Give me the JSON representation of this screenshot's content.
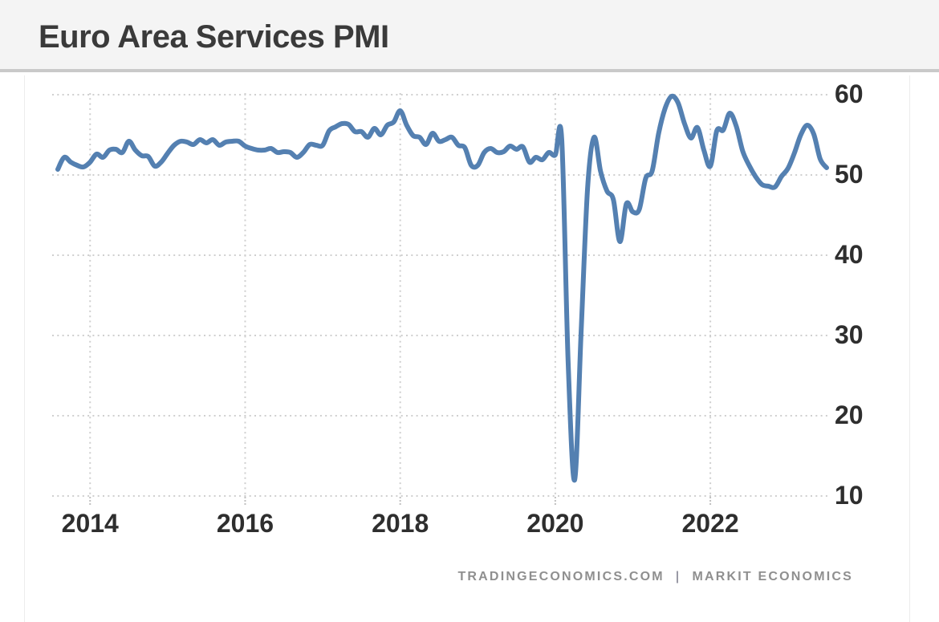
{
  "header": {
    "title": "Euro Area Services PMI"
  },
  "footer": {
    "source_left": "TRADINGECONOMICS.COM",
    "separator": "|",
    "source_right": "MARKIT ECONOMICS"
  },
  "chart_data": {
    "type": "line",
    "title": "Euro Area Services PMI",
    "frequency": "monthly",
    "x_start": "2013-08",
    "x_end": "2023-07",
    "ylim": [
      10,
      60
    ],
    "y_tick_labels": [
      "60",
      "50",
      "40",
      "30",
      "20",
      "10"
    ],
    "y_tick_values": [
      60,
      50,
      40,
      30,
      20,
      10
    ],
    "x_tick_labels": [
      "2014",
      "2016",
      "2018",
      "2020",
      "2022"
    ],
    "grid": "dotted",
    "legend": "none",
    "line_color": "#5480b1",
    "values": [
      50.7,
      52.2,
      51.6,
      51.2,
      51.0,
      51.6,
      52.6,
      52.2,
      53.1,
      53.2,
      52.8,
      54.2,
      53.1,
      52.4,
      52.3,
      51.1,
      51.6,
      52.7,
      53.7,
      54.2,
      54.1,
      53.8,
      54.4,
      54.0,
      54.4,
      53.7,
      54.1,
      54.2,
      54.2,
      53.6,
      53.3,
      53.1,
      53.1,
      53.3,
      52.8,
      52.9,
      52.8,
      52.2,
      52.8,
      53.8,
      53.7,
      53.7,
      55.5,
      56.0,
      56.4,
      56.3,
      55.4,
      55.4,
      54.7,
      55.8,
      55.0,
      56.2,
      56.6,
      58.0,
      56.2,
      54.9,
      54.7,
      53.8,
      55.2,
      54.2,
      54.4,
      54.7,
      53.7,
      53.4,
      51.2,
      51.2,
      52.8,
      53.3,
      52.8,
      52.9,
      53.6,
      53.2,
      53.5,
      51.6,
      52.2,
      51.9,
      52.8,
      52.5,
      54.5,
      26.4,
      12.0,
      30.5,
      48.3,
      54.7,
      50.5,
      48.0,
      46.9,
      41.7,
      46.4,
      45.4,
      45.7,
      49.6,
      50.5,
      55.2,
      58.3,
      59.8,
      59.0,
      56.4,
      54.6,
      55.9,
      53.1,
      51.1,
      55.5,
      55.6,
      57.7,
      56.1,
      53.0,
      51.2,
      49.8,
      48.8,
      48.6,
      48.5,
      49.8,
      50.8,
      52.7,
      55.0,
      56.2,
      55.1,
      52.0,
      50.9
    ]
  },
  "colors": {
    "line": "#5480b1",
    "grid": "#cfcfcf",
    "axis_tick": "#c0c0c0",
    "tick_text": "#2e2e2e",
    "header_bg": "#f4f4f4",
    "header_border": "#c9c9c9",
    "footer_text": "#8f8f8f"
  }
}
